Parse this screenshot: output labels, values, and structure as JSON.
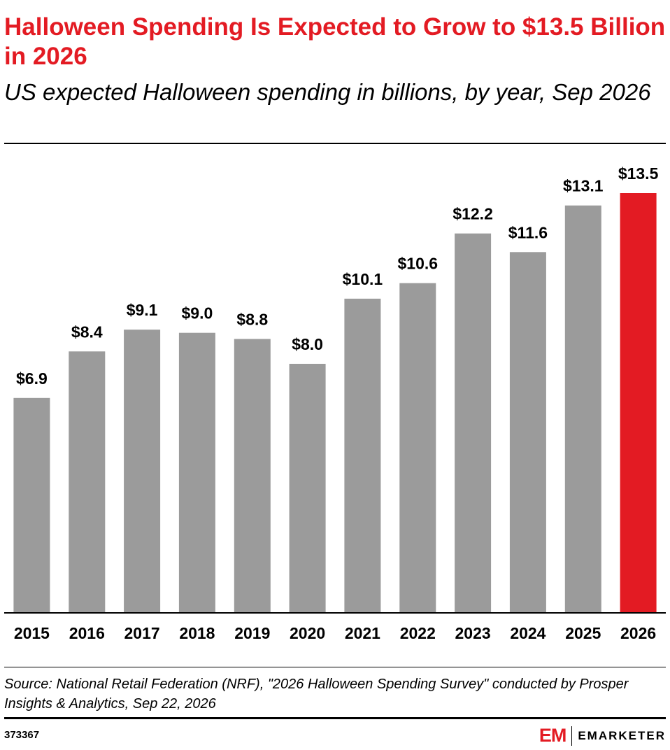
{
  "header": {
    "title": "Halloween Spending Is Expected to Grow to $13.5 Billion in 2026",
    "subtitle": "US expected Halloween spending in billions, by year, Sep 2026"
  },
  "chart_data": {
    "type": "bar",
    "title": "Halloween Spending Is Expected to Grow to $13.5 Billion in 2026",
    "subtitle": "US expected Halloween spending in billions, by year, Sep 2026",
    "categories": [
      "2015",
      "2016",
      "2017",
      "2018",
      "2019",
      "2020",
      "2021",
      "2022",
      "2023",
      "2024",
      "2025",
      "2026"
    ],
    "values": [
      6.9,
      8.4,
      9.1,
      9.0,
      8.8,
      8.0,
      10.1,
      10.6,
      12.2,
      11.6,
      13.1,
      13.5
    ],
    "data_labels": [
      "$6.9",
      "$8.4",
      "$9.1",
      "$9.0",
      "$8.8",
      "$8.0",
      "$10.1",
      "$10.6",
      "$12.2",
      "$11.6",
      "$13.1",
      "$13.5"
    ],
    "colors": {
      "default": "#9b9b9b",
      "highlight": "#e31b23"
    },
    "highlight_category": "2026",
    "xlabel": "",
    "ylabel": "",
    "ylim": [
      0,
      13.5
    ],
    "grid": false,
    "legend": "none"
  },
  "footer": {
    "source": "Source: National Retail Federation (NRF), \"2026 Halloween Spending Survey\" conducted by Prosper Insights & Analytics, Sep 22, 2026",
    "chart_id": "373367",
    "brand_mark": "EM",
    "brand_name": "EMARKETER"
  }
}
